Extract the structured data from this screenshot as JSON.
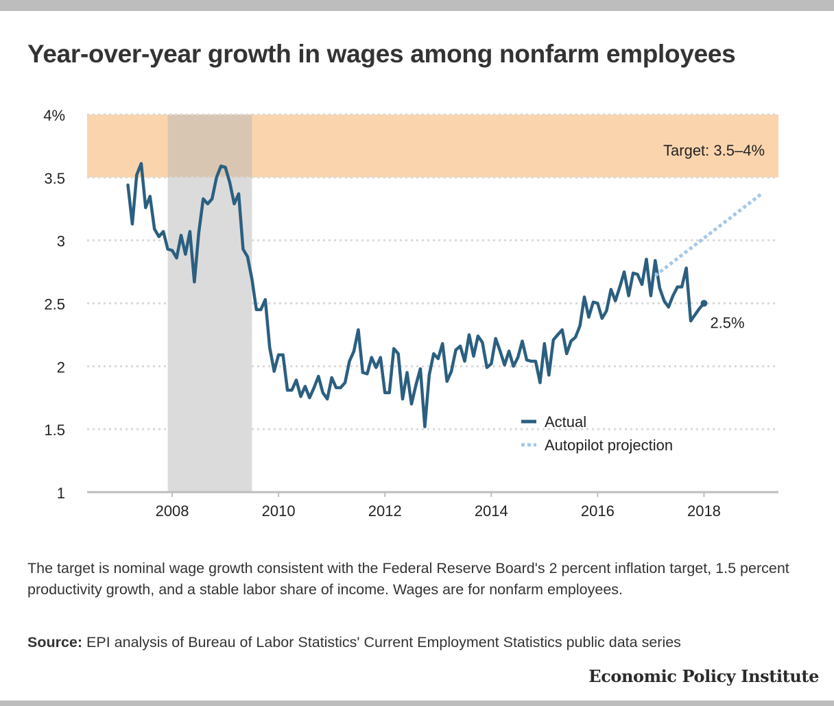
{
  "title": "Year-over-year growth in wages among nonfarm employees",
  "note": "The target is nominal wage growth consistent with the Federal Reserve Board's 2 percent inflation target, 1.5 percent productivity growth, and a stable labor share of income. Wages are for nonfarm employees.",
  "source_label": "Source:",
  "source_text": " EPI analysis of Bureau of Labor Statistics' Current Employment Statistics public data series",
  "brand": "Economic Policy Institute",
  "colors": {
    "actual": "#2b5f80",
    "projection": "#a6c8e8",
    "target_band": "#fad4ad",
    "recession": "#b8b8b8",
    "grid": "#d9d9d9"
  },
  "chart_data": {
    "type": "line",
    "title": "Year-over-year growth in wages among nonfarm employees",
    "xlabel": "",
    "ylabel": "",
    "xlim": [
      2006.4,
      2019.4
    ],
    "ylim": [
      1,
      4
    ],
    "y_ticks": [
      {
        "value": 4,
        "label": "4%"
      },
      {
        "value": 3.5,
        "label": "3.5"
      },
      {
        "value": 3,
        "label": "3"
      },
      {
        "value": 2.5,
        "label": "2.5"
      },
      {
        "value": 2,
        "label": "2"
      },
      {
        "value": 1.5,
        "label": "1.5"
      },
      {
        "value": 1,
        "label": "1"
      }
    ],
    "x_ticks": [
      {
        "value": 2008,
        "label": "2008"
      },
      {
        "value": 2010,
        "label": "2010"
      },
      {
        "value": 2012,
        "label": "2012"
      },
      {
        "value": 2014,
        "label": "2014"
      },
      {
        "value": 2016,
        "label": "2016"
      },
      {
        "value": 2018,
        "label": "2018"
      }
    ],
    "grid": true,
    "legend_position": "bottom-right",
    "target_band": {
      "from": 3.5,
      "to": 4,
      "label": "Target: 3.5–4%"
    },
    "recession": {
      "from": 2007.917,
      "to": 2009.5
    },
    "end_label": "2.5%",
    "series": [
      {
        "name": "Actual",
        "style": "solid",
        "x": [
          2007.167,
          2007.25,
          2007.333,
          2007.417,
          2007.5,
          2007.583,
          2007.667,
          2007.75,
          2007.833,
          2007.917,
          2008,
          2008.083,
          2008.167,
          2008.25,
          2008.333,
          2008.417,
          2008.5,
          2008.583,
          2008.667,
          2008.75,
          2008.833,
          2008.917,
          2009,
          2009.083,
          2009.167,
          2009.25,
          2009.333,
          2009.417,
          2009.5,
          2009.583,
          2009.667,
          2009.75,
          2009.833,
          2009.917,
          2010,
          2010.083,
          2010.167,
          2010.25,
          2010.333,
          2010.417,
          2010.5,
          2010.583,
          2010.667,
          2010.75,
          2010.833,
          2010.917,
          2011,
          2011.083,
          2011.167,
          2011.25,
          2011.333,
          2011.417,
          2011.5,
          2011.583,
          2011.667,
          2011.75,
          2011.833,
          2011.917,
          2012,
          2012.083,
          2012.167,
          2012.25,
          2012.333,
          2012.417,
          2012.5,
          2012.583,
          2012.667,
          2012.75,
          2012.833,
          2012.917,
          2013,
          2013.083,
          2013.167,
          2013.25,
          2013.333,
          2013.417,
          2013.5,
          2013.583,
          2013.667,
          2013.75,
          2013.833,
          2013.917,
          2014,
          2014.083,
          2014.167,
          2014.25,
          2014.333,
          2014.417,
          2014.5,
          2014.583,
          2014.667,
          2014.75,
          2014.833,
          2014.917,
          2015,
          2015.083,
          2015.167,
          2015.25,
          2015.333,
          2015.417,
          2015.5,
          2015.583,
          2015.667,
          2015.75,
          2015.833,
          2015.917,
          2016,
          2016.083,
          2016.167,
          2016.25,
          2016.333,
          2016.417,
          2016.5,
          2016.583,
          2016.667,
          2016.75,
          2016.833,
          2016.917,
          2017,
          2017.083,
          2017.167,
          2017.25,
          2017.333,
          2017.417,
          2017.5,
          2017.583,
          2017.667,
          2017.75,
          2017.833,
          2017.917,
          2018
        ],
        "values": [
          3.44,
          3.13,
          3.52,
          3.61,
          3.26,
          3.35,
          3.09,
          3.03,
          3.07,
          2.93,
          2.92,
          2.86,
          3.04,
          2.89,
          3.07,
          2.67,
          3.06,
          3.33,
          3.29,
          3.33,
          3.5,
          3.59,
          3.58,
          3.46,
          3.29,
          3.37,
          2.93,
          2.87,
          2.69,
          2.45,
          2.45,
          2.53,
          2.15,
          1.96,
          2.09,
          2.09,
          1.81,
          1.81,
          1.89,
          1.76,
          1.84,
          1.75,
          1.83,
          1.92,
          1.79,
          1.74,
          1.91,
          1.83,
          1.83,
          1.87,
          2.04,
          2.12,
          2.29,
          1.95,
          1.94,
          2.07,
          1.99,
          2.07,
          1.79,
          1.79,
          2.14,
          2.1,
          1.74,
          1.95,
          1.7,
          1.85,
          1.98,
          1.52,
          1.93,
          2.1,
          2.06,
          2.18,
          1.88,
          1.96,
          2.13,
          2.16,
          2.04,
          2.25,
          2.08,
          2.24,
          2.19,
          1.99,
          2.02,
          2.22,
          2.12,
          2.01,
          2.12,
          2.0,
          2.07,
          2.2,
          2.05,
          2.04,
          2.04,
          1.87,
          2.18,
          1.93,
          2.21,
          2.25,
          2.29,
          2.1,
          2.2,
          2.23,
          2.32,
          2.55,
          2.39,
          2.51,
          2.5,
          2.38,
          2.44,
          2.61,
          2.52,
          2.63,
          2.75,
          2.56,
          2.74,
          2.73,
          2.65,
          2.85,
          2.56,
          2.84,
          2.62,
          2.52,
          2.47,
          2.56,
          2.63,
          2.63,
          2.78,
          2.36,
          2.41,
          2.46,
          2.5
        ]
      },
      {
        "name": "Autopilot projection",
        "style": "dotted",
        "x": [
          2017.083,
          2019.083
        ],
        "values": [
          2.72,
          3.37
        ]
      }
    ]
  }
}
